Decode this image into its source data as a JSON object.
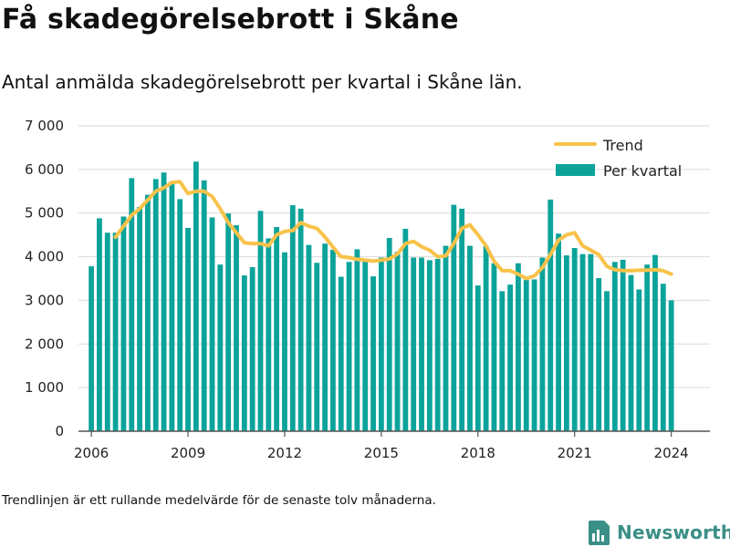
{
  "title": "Få skadegörelsebrott i Skåne",
  "subtitle": "Antal anmälda skadegörelsebrott per kvartal i Skåne län.",
  "footnote": "Trendlinjen är ett rullande medelvärde för de senaste tolv månaderna.",
  "brand": {
    "name": "Newsworthy",
    "icon": "bar-chart-doc-icon"
  },
  "colors": {
    "bars": "#0ba39a",
    "trend": "#f8c24a",
    "grid": "#d9d9d9",
    "axis": "#555555"
  },
  "chart_data": {
    "type": "bar",
    "ylim": [
      0,
      7000
    ],
    "xlim": [
      2005.6,
      2025.2
    ],
    "y_ticks": [
      {
        "value": 0,
        "label": "0"
      },
      {
        "value": 1000,
        "label": "1 000"
      },
      {
        "value": 2000,
        "label": "2 000"
      },
      {
        "value": 3000,
        "label": "3 000"
      },
      {
        "value": 4000,
        "label": "4 000"
      },
      {
        "value": 5000,
        "label": "5 000"
      },
      {
        "value": 6000,
        "label": "6 000"
      },
      {
        "value": 7000,
        "label": "7 000"
      }
    ],
    "x_ticks": [
      {
        "value": 2006,
        "label": "2006"
      },
      {
        "value": 2009,
        "label": "2009"
      },
      {
        "value": 2012,
        "label": "2012"
      },
      {
        "value": 2015,
        "label": "2015"
      },
      {
        "value": 2018,
        "label": "2018"
      },
      {
        "value": 2021,
        "label": "2021"
      },
      {
        "value": 2024,
        "label": "2024"
      }
    ],
    "grid": true,
    "legend_position": "top-right",
    "series": [
      {
        "name": "Per kvartal",
        "kind": "bar",
        "x": [
          2006.0,
          2006.25,
          2006.5,
          2006.75,
          2007.0,
          2007.25,
          2007.5,
          2007.75,
          2008.0,
          2008.25,
          2008.5,
          2008.75,
          2009.0,
          2009.25,
          2009.5,
          2009.75,
          2010.0,
          2010.25,
          2010.5,
          2010.75,
          2011.0,
          2011.25,
          2011.5,
          2011.75,
          2012.0,
          2012.25,
          2012.5,
          2012.75,
          2013.0,
          2013.25,
          2013.5,
          2013.75,
          2014.0,
          2014.25,
          2014.5,
          2014.75,
          2015.0,
          2015.25,
          2015.5,
          2015.75,
          2016.0,
          2016.25,
          2016.5,
          2016.75,
          2017.0,
          2017.25,
          2017.5,
          2017.75,
          2018.0,
          2018.25,
          2018.5,
          2018.75,
          2019.0,
          2019.25,
          2019.5,
          2019.75,
          2020.0,
          2020.25,
          2020.5,
          2020.75,
          2021.0,
          2021.25,
          2021.5,
          2021.75,
          2022.0,
          2022.25,
          2022.5,
          2022.75,
          2023.0,
          2023.25,
          2023.5,
          2023.75,
          2024.0
        ],
        "values": [
          3780,
          4880,
          4550,
          4550,
          4920,
          5800,
          5140,
          5420,
          5780,
          5930,
          5720,
          5320,
          4660,
          6180,
          5750,
          4900,
          3820,
          4990,
          4720,
          3570,
          3760,
          5050,
          4420,
          4680,
          4100,
          5180,
          5100,
          4270,
          3860,
          4300,
          4160,
          3540,
          3880,
          4170,
          3900,
          3550,
          3980,
          4430,
          4110,
          4640,
          3980,
          3980,
          3920,
          3950,
          4250,
          5190,
          5100,
          4250,
          3340,
          4240,
          3850,
          3210,
          3360,
          3850,
          3470,
          3480,
          3980,
          5310,
          4530,
          4030,
          4200,
          4060,
          4060,
          3510,
          3210,
          3880,
          3930,
          3580,
          3250,
          3820,
          4040,
          3380,
          3000
        ]
      },
      {
        "name": "Trend",
        "kind": "line",
        "x": [
          2006.75,
          2007.0,
          2007.25,
          2007.5,
          2007.75,
          2008.0,
          2008.25,
          2008.5,
          2008.75,
          2009.0,
          2009.25,
          2009.5,
          2009.75,
          2010.0,
          2010.25,
          2010.5,
          2010.75,
          2011.0,
          2011.25,
          2011.5,
          2011.75,
          2012.0,
          2012.25,
          2012.5,
          2012.75,
          2013.0,
          2013.25,
          2013.5,
          2013.75,
          2014.0,
          2014.25,
          2014.5,
          2014.75,
          2015.0,
          2015.25,
          2015.5,
          2015.75,
          2016.0,
          2016.25,
          2016.5,
          2016.75,
          2017.0,
          2017.25,
          2017.5,
          2017.75,
          2018.0,
          2018.25,
          2018.5,
          2018.75,
          2019.0,
          2019.25,
          2019.5,
          2019.75,
          2020.0,
          2020.25,
          2020.5,
          2020.75,
          2021.0,
          2021.25,
          2021.5,
          2021.75,
          2022.0,
          2022.25,
          2022.5,
          2022.75,
          2023.0,
          2023.25,
          2023.5,
          2023.75,
          2024.0
        ],
        "values": [
          4450,
          4700,
          4950,
          5100,
          5300,
          5500,
          5580,
          5700,
          5720,
          5450,
          5500,
          5500,
          5380,
          5100,
          4780,
          4550,
          4320,
          4300,
          4300,
          4250,
          4500,
          4580,
          4600,
          4780,
          4700,
          4650,
          4450,
          4220,
          4000,
          3980,
          3940,
          3920,
          3900,
          3920,
          3950,
          4060,
          4300,
          4350,
          4230,
          4150,
          4000,
          4020,
          4300,
          4650,
          4730,
          4500,
          4250,
          3900,
          3680,
          3680,
          3600,
          3500,
          3560,
          3750,
          4050,
          4380,
          4500,
          4550,
          4250,
          4150,
          4050,
          3780,
          3700,
          3680,
          3680,
          3690,
          3690,
          3700,
          3680,
          3600
        ]
      }
    ]
  }
}
